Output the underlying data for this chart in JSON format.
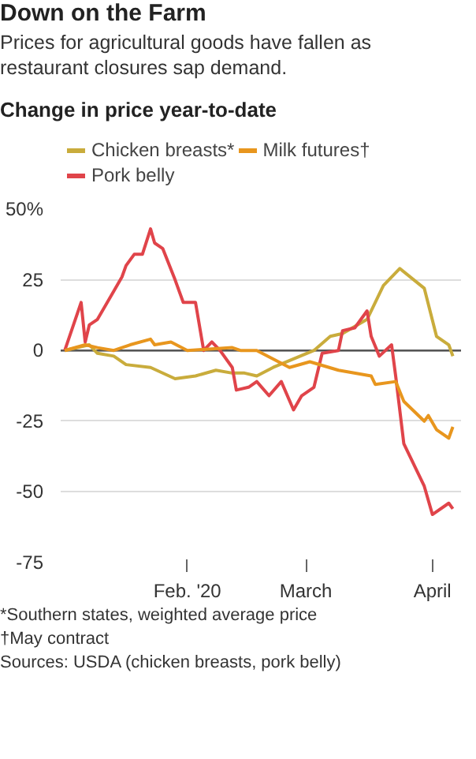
{
  "chart_data": {
    "type": "line",
    "title": "Down on the Farm",
    "subtitle": "Prices for agricultural goods have fallen as restaurant closures sap demand.",
    "legend_title": "Change in price year-to-date",
    "series": [
      {
        "name": "Chicken breasts*",
        "color": "#c9ac3c",
        "x": [
          "2020-01-02",
          "2020-01-08",
          "2020-01-10",
          "2020-01-14",
          "2020-01-17",
          "2020-01-23",
          "2020-01-29",
          "2020-02-03",
          "2020-02-08",
          "2020-02-12",
          "2020-02-15",
          "2020-02-18",
          "2020-02-22",
          "2020-03-03",
          "2020-03-07",
          "2020-03-10",
          "2020-03-16",
          "2020-03-20",
          "2020-03-24",
          "2020-03-30",
          "2020-04-02",
          "2020-04-05",
          "2020-04-06"
        ],
        "values": [
          0,
          2,
          -1,
          -2,
          -5,
          -6,
          -10,
          -9,
          -7,
          -8,
          -8,
          -9,
          -6,
          0,
          5,
          6,
          11,
          23,
          29,
          22,
          5,
          2,
          -2
        ]
      },
      {
        "name": "Pork belly",
        "color": "#e0444a",
        "x": [
          "2020-01-02",
          "2020-01-06",
          "2020-01-07",
          "2020-01-08",
          "2020-01-10",
          "2020-01-14",
          "2020-01-16",
          "2020-01-17",
          "2020-01-19",
          "2020-01-21",
          "2020-01-23",
          "2020-01-24",
          "2020-01-26",
          "2020-01-29",
          "2020-01-31",
          "2020-02-03",
          "2020-02-05",
          "2020-02-07",
          "2020-02-09",
          "2020-02-12",
          "2020-02-13",
          "2020-02-16",
          "2020-02-18",
          "2020-02-21",
          "2020-02-24",
          "2020-02-27",
          "2020-02-29",
          "2020-03-03",
          "2020-03-05",
          "2020-03-09",
          "2020-03-10",
          "2020-03-13",
          "2020-03-16",
          "2020-03-17",
          "2020-03-19",
          "2020-03-22",
          "2020-03-23",
          "2020-03-25",
          "2020-03-30",
          "2020-04-01",
          "2020-04-05",
          "2020-04-06"
        ],
        "values": [
          0,
          17,
          3,
          9,
          11,
          21,
          26,
          30,
          34,
          34,
          43,
          38,
          36,
          25,
          17,
          17,
          0,
          3,
          0,
          -6,
          -14,
          -13,
          -11,
          -16,
          -11,
          -21,
          -16,
          -13,
          -1,
          0,
          7,
          8,
          14,
          5,
          -2,
          2,
          -9,
          -33,
          -48,
          -58,
          -54,
          -56
        ]
      },
      {
        "name": "Milk futures†",
        "color": "#e8961e",
        "x": [
          "2020-01-02",
          "2020-01-07",
          "2020-01-10",
          "2020-01-14",
          "2020-01-18",
          "2020-01-23",
          "2020-01-24",
          "2020-01-28",
          "2020-02-01",
          "2020-02-12",
          "2020-02-14",
          "2020-02-18",
          "2020-02-22",
          "2020-02-26",
          "2020-03-02",
          "2020-03-09",
          "2020-03-17",
          "2020-03-18",
          "2020-03-23",
          "2020-03-25",
          "2020-03-30",
          "2020-03-31",
          "2020-04-02",
          "2020-04-05",
          "2020-04-06"
        ],
        "values": [
          0,
          2,
          1,
          0,
          2,
          4,
          2,
          3,
          0,
          1,
          0,
          0,
          -3,
          -6,
          -4,
          -7,
          -9,
          -12,
          -11,
          -18,
          -25,
          -23,
          -28,
          -31,
          -27
        ]
      }
    ],
    "xlim": [
      "2020-01-01",
      "2020-04-08"
    ],
    "xticks": [
      {
        "value": "2020-02-01",
        "label": "Feb. '20"
      },
      {
        "value": "2020-03-01",
        "label": "March"
      },
      {
        "value": "2020-04-01",
        "label": "April"
      }
    ],
    "ylim": [
      -75,
      50
    ],
    "yticks": [
      {
        "value": 50,
        "label": "50%"
      },
      25,
      0,
      -25,
      -50,
      -75
    ],
    "ref_lines": [
      {
        "axis": "y",
        "value": 0,
        "color": "#555555"
      }
    ],
    "grid": "y",
    "legend": "top",
    "line_style": "solid",
    "annotations": [
      "*Southern states, weighted average price",
      "†May contract",
      "Sources: USDA (chicken breasts, pork belly)"
    ]
  }
}
